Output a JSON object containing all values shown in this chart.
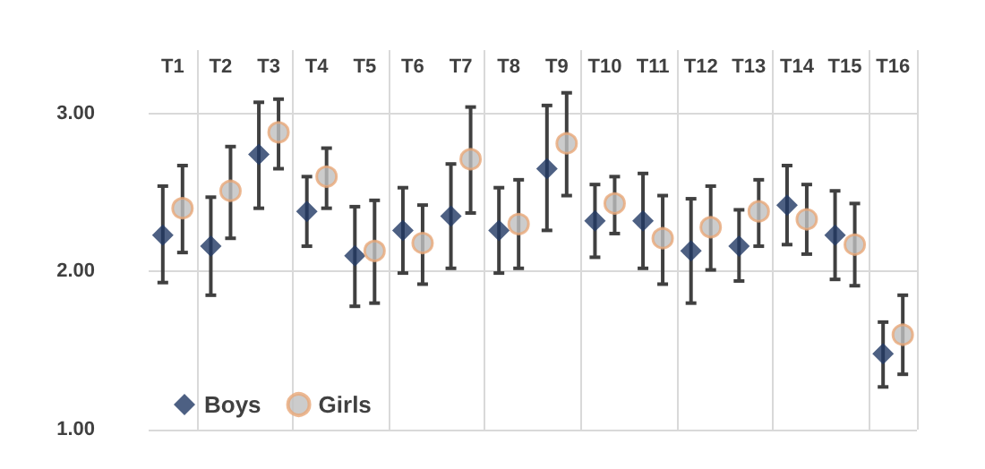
{
  "chart_data": {
    "type": "scatter",
    "categories": [
      "T1",
      "T2",
      "T3",
      "T4",
      "T5",
      "T6",
      "T7",
      "T8",
      "T9",
      "T10",
      "T11",
      "T12",
      "T13",
      "T14",
      "T15",
      "T16"
    ],
    "series": [
      {
        "name": "Boys",
        "color": "#203864",
        "marker": "diamond",
        "values": [
          2.23,
          2.16,
          2.74,
          2.38,
          2.1,
          2.26,
          2.35,
          2.26,
          2.65,
          2.32,
          2.32,
          2.13,
          2.16,
          2.42,
          2.23,
          1.48
        ],
        "errors": [
          [
            1.93,
            2.54
          ],
          [
            1.85,
            2.47
          ],
          [
            2.4,
            3.07
          ],
          [
            2.16,
            2.6
          ],
          [
            1.78,
            2.41
          ],
          [
            1.99,
            2.53
          ],
          [
            2.02,
            2.68
          ],
          [
            1.99,
            2.53
          ],
          [
            2.26,
            3.05
          ],
          [
            2.09,
            2.55
          ],
          [
            2.02,
            2.62
          ],
          [
            1.8,
            2.46
          ],
          [
            1.94,
            2.39
          ],
          [
            2.17,
            2.67
          ],
          [
            1.95,
            2.51
          ],
          [
            1.27,
            1.68
          ]
        ]
      },
      {
        "name": "Girls",
        "color": "#bfbfbf",
        "marker": "circle",
        "values": [
          2.4,
          2.51,
          2.88,
          2.6,
          2.13,
          2.18,
          2.71,
          2.3,
          2.81,
          2.43,
          2.21,
          2.28,
          2.38,
          2.33,
          2.17,
          1.6
        ],
        "errors": [
          [
            2.12,
            2.67
          ],
          [
            2.21,
            2.79
          ],
          [
            2.65,
            3.09
          ],
          [
            2.4,
            2.78
          ],
          [
            1.8,
            2.45
          ],
          [
            1.92,
            2.42
          ],
          [
            2.37,
            3.04
          ],
          [
            2.02,
            2.58
          ],
          [
            2.48,
            3.13
          ],
          [
            2.24,
            2.6
          ],
          [
            1.92,
            2.48
          ],
          [
            2.01,
            2.54
          ],
          [
            2.16,
            2.58
          ],
          [
            2.11,
            2.55
          ],
          [
            1.91,
            2.43
          ],
          [
            1.35,
            1.85
          ]
        ]
      }
    ],
    "ylim": [
      1,
      3.4
    ],
    "yticks": [
      {
        "value": 1,
        "label": "1.00"
      },
      {
        "value": 2,
        "label": "2.00"
      },
      {
        "value": 3,
        "label": "3.00"
      }
    ],
    "grid": true,
    "legend": "bottom left"
  }
}
